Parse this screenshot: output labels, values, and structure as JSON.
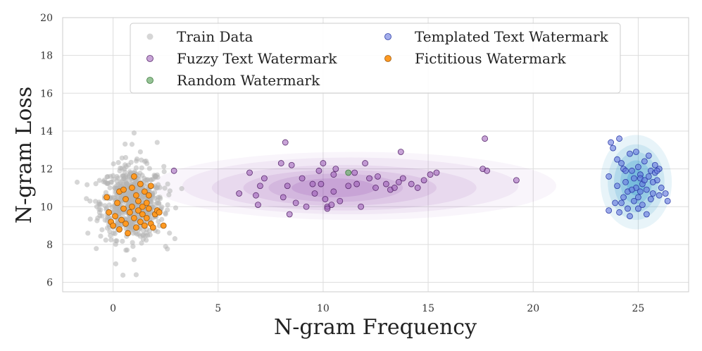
{
  "chart_data": {
    "type": "scatter",
    "title": "",
    "xlabel": "N-gram Frequency",
    "ylabel": "N-gram Loss",
    "xlim": [
      -2.4,
      27.4
    ],
    "ylim": [
      5.5,
      20
    ],
    "xticks": [
      "0",
      "5",
      "10",
      "15",
      "20",
      "25"
    ],
    "xtick_values": [
      0,
      5,
      10,
      15,
      20,
      25
    ],
    "yticks": [
      "6",
      "8",
      "10",
      "12",
      "14",
      "16",
      "18",
      "20"
    ],
    "ytick_values": [
      6,
      8,
      10,
      12,
      14,
      16,
      18,
      20
    ],
    "grid": true,
    "legend_position": "top",
    "series": [
      {
        "name": "Train Data",
        "color": "#b4b4b4",
        "approx_distribution": {
          "x_mean": 0.9,
          "x_sd": 0.75,
          "y_mean": 10.2,
          "y_sd": 0.95,
          "count": 650
        },
        "points": [
          [
            1.0,
            13.9
          ],
          [
            0.9,
            13.3
          ],
          [
            2.1,
            13.4
          ],
          [
            1.3,
            12.9
          ],
          [
            0.6,
            12.6
          ],
          [
            1.0,
            7.2
          ],
          [
            1.1,
            6.4
          ],
          [
            2.5,
            7.9
          ],
          [
            2.6,
            10.1
          ],
          [
            -1.2,
            8.6
          ],
          [
            -1.1,
            10.3
          ],
          [
            2.6,
            11.2
          ]
        ]
      },
      {
        "name": "Fuzzy Text Watermark",
        "color": "#9b59b6",
        "points": [
          [
            2.9,
            11.9
          ],
          [
            6.0,
            10.7
          ],
          [
            6.5,
            11.8
          ],
          [
            6.8,
            10.6
          ],
          [
            6.9,
            10.1
          ],
          [
            7.0,
            11.1
          ],
          [
            7.2,
            11.5
          ],
          [
            8.0,
            12.3
          ],
          [
            8.1,
            10.5
          ],
          [
            8.2,
            13.4
          ],
          [
            8.3,
            11.1
          ],
          [
            8.4,
            9.6
          ],
          [
            8.5,
            12.2
          ],
          [
            8.7,
            10.2
          ],
          [
            9.0,
            11.5
          ],
          [
            9.2,
            10.0
          ],
          [
            9.5,
            11.2
          ],
          [
            9.6,
            10.7
          ],
          [
            9.8,
            11.9
          ],
          [
            9.9,
            11.2
          ],
          [
            10.0,
            12.3
          ],
          [
            10.1,
            10.4
          ],
          [
            10.2,
            10.0
          ],
          [
            10.2,
            9.9
          ],
          [
            10.4,
            10.1
          ],
          [
            10.5,
            11.7
          ],
          [
            10.5,
            10.8
          ],
          [
            10.6,
            12.0
          ],
          [
            10.8,
            10.3
          ],
          [
            11.2,
            11.1
          ],
          [
            11.5,
            11.8
          ],
          [
            11.6,
            11.2
          ],
          [
            11.8,
            10.0
          ],
          [
            12.0,
            12.3
          ],
          [
            12.2,
            11.5
          ],
          [
            12.5,
            11.0
          ],
          [
            12.6,
            11.6
          ],
          [
            13.0,
            11.2
          ],
          [
            13.2,
            10.9
          ],
          [
            13.4,
            11.0
          ],
          [
            13.6,
            11.3
          ],
          [
            13.7,
            12.9
          ],
          [
            13.8,
            11.5
          ],
          [
            14.2,
            11.2
          ],
          [
            14.5,
            11.0
          ],
          [
            14.8,
            11.4
          ],
          [
            15.1,
            11.7
          ],
          [
            15.4,
            11.8
          ],
          [
            17.6,
            12.0
          ],
          [
            17.7,
            13.6
          ],
          [
            17.8,
            11.9
          ],
          [
            19.2,
            11.4
          ]
        ]
      },
      {
        "name": "Random Watermark",
        "color": "#6aaa6a",
        "points": [
          [
            11.2,
            11.8
          ]
        ]
      },
      {
        "name": "Templated Text Watermark",
        "color": "#6677dd",
        "points": [
          [
            23.6,
            11.6
          ],
          [
            23.7,
            13.4
          ],
          [
            23.8,
            13.1
          ],
          [
            24.0,
            12.5
          ],
          [
            24.1,
            13.6
          ],
          [
            24.2,
            12.3
          ],
          [
            24.3,
            12.0
          ],
          [
            24.4,
            11.3
          ],
          [
            24.5,
            10.8
          ],
          [
            24.6,
            12.8
          ],
          [
            24.7,
            11.9
          ],
          [
            24.8,
            11.5
          ],
          [
            24.9,
            11.0
          ],
          [
            25.0,
            12.1
          ],
          [
            25.0,
            10.5
          ],
          [
            25.1,
            11.7
          ],
          [
            25.2,
            11.2
          ],
          [
            25.3,
            12.4
          ],
          [
            25.4,
            10.9
          ],
          [
            25.5,
            11.6
          ],
          [
            25.6,
            11.9
          ],
          [
            25.7,
            10.7
          ],
          [
            25.8,
            12.2
          ],
          [
            25.9,
            11.4
          ],
          [
            26.0,
            12.0
          ],
          [
            26.1,
            11.0
          ],
          [
            23.6,
            9.8
          ],
          [
            23.9,
            10.2
          ],
          [
            24.1,
            9.7
          ],
          [
            24.3,
            10.5
          ],
          [
            24.6,
            9.5
          ],
          [
            24.8,
            10.3
          ],
          [
            25.0,
            9.9
          ],
          [
            25.2,
            10.1
          ],
          [
            25.4,
            9.6
          ],
          [
            25.6,
            10.4
          ],
          [
            25.8,
            11.8
          ],
          [
            26.3,
            10.7
          ],
          [
            26.4,
            10.3
          ],
          [
            24.0,
            11.1
          ],
          [
            24.4,
            11.9
          ],
          [
            24.7,
            10.9
          ],
          [
            25.1,
            11.5
          ],
          [
            25.3,
            11.4
          ],
          [
            25.5,
            12.7
          ],
          [
            24.9,
            12.9
          ],
          [
            24.2,
            10.2
          ],
          [
            25.7,
            11.3
          ],
          [
            26.0,
            10.6
          ],
          [
            25.9,
            11.9
          ],
          [
            24.5,
            9.9
          ],
          [
            25.1,
            10.8
          ]
        ]
      },
      {
        "name": "Fictitious Watermark",
        "color": "#ff9922",
        "points": [
          [
            -0.3,
            10.5
          ],
          [
            -0.2,
            9.7
          ],
          [
            -0.1,
            9.2
          ],
          [
            0.0,
            9.0
          ],
          [
            0.1,
            9.5
          ],
          [
            0.2,
            10.2
          ],
          [
            0.3,
            8.8
          ],
          [
            0.3,
            10.8
          ],
          [
            0.4,
            9.3
          ],
          [
            0.5,
            9.9
          ],
          [
            0.6,
            9.1
          ],
          [
            0.6,
            10.4
          ],
          [
            0.7,
            8.6
          ],
          [
            0.8,
            9.7
          ],
          [
            0.9,
            10.0
          ],
          [
            0.9,
            11.0
          ],
          [
            1.0,
            11.6
          ],
          [
            1.0,
            9.4
          ],
          [
            1.1,
            10.6
          ],
          [
            1.1,
            8.9
          ],
          [
            1.2,
            9.8
          ],
          [
            1.2,
            10.3
          ],
          [
            1.3,
            11.2
          ],
          [
            1.3,
            9.2
          ],
          [
            1.4,
            10.0
          ],
          [
            1.4,
            9.6
          ],
          [
            1.5,
            10.8
          ],
          [
            1.5,
            9.0
          ],
          [
            1.6,
            10.2
          ],
          [
            1.6,
            9.4
          ],
          [
            1.7,
            9.9
          ],
          [
            1.7,
            10.6
          ],
          [
            1.8,
            9.1
          ],
          [
            1.8,
            11.1
          ],
          [
            1.9,
            8.9
          ],
          [
            2.0,
            9.6
          ],
          [
            2.1,
            9.8
          ],
          [
            2.2,
            9.7
          ],
          [
            2.4,
            9.0
          ],
          [
            0.5,
            10.9
          ]
        ]
      }
    ],
    "density_contours": [
      {
        "series": "Fuzzy Text Watermark",
        "color": "#8e44ad"
      },
      {
        "series": "Templated Text Watermark",
        "color": "#1f8fc8"
      }
    ]
  }
}
